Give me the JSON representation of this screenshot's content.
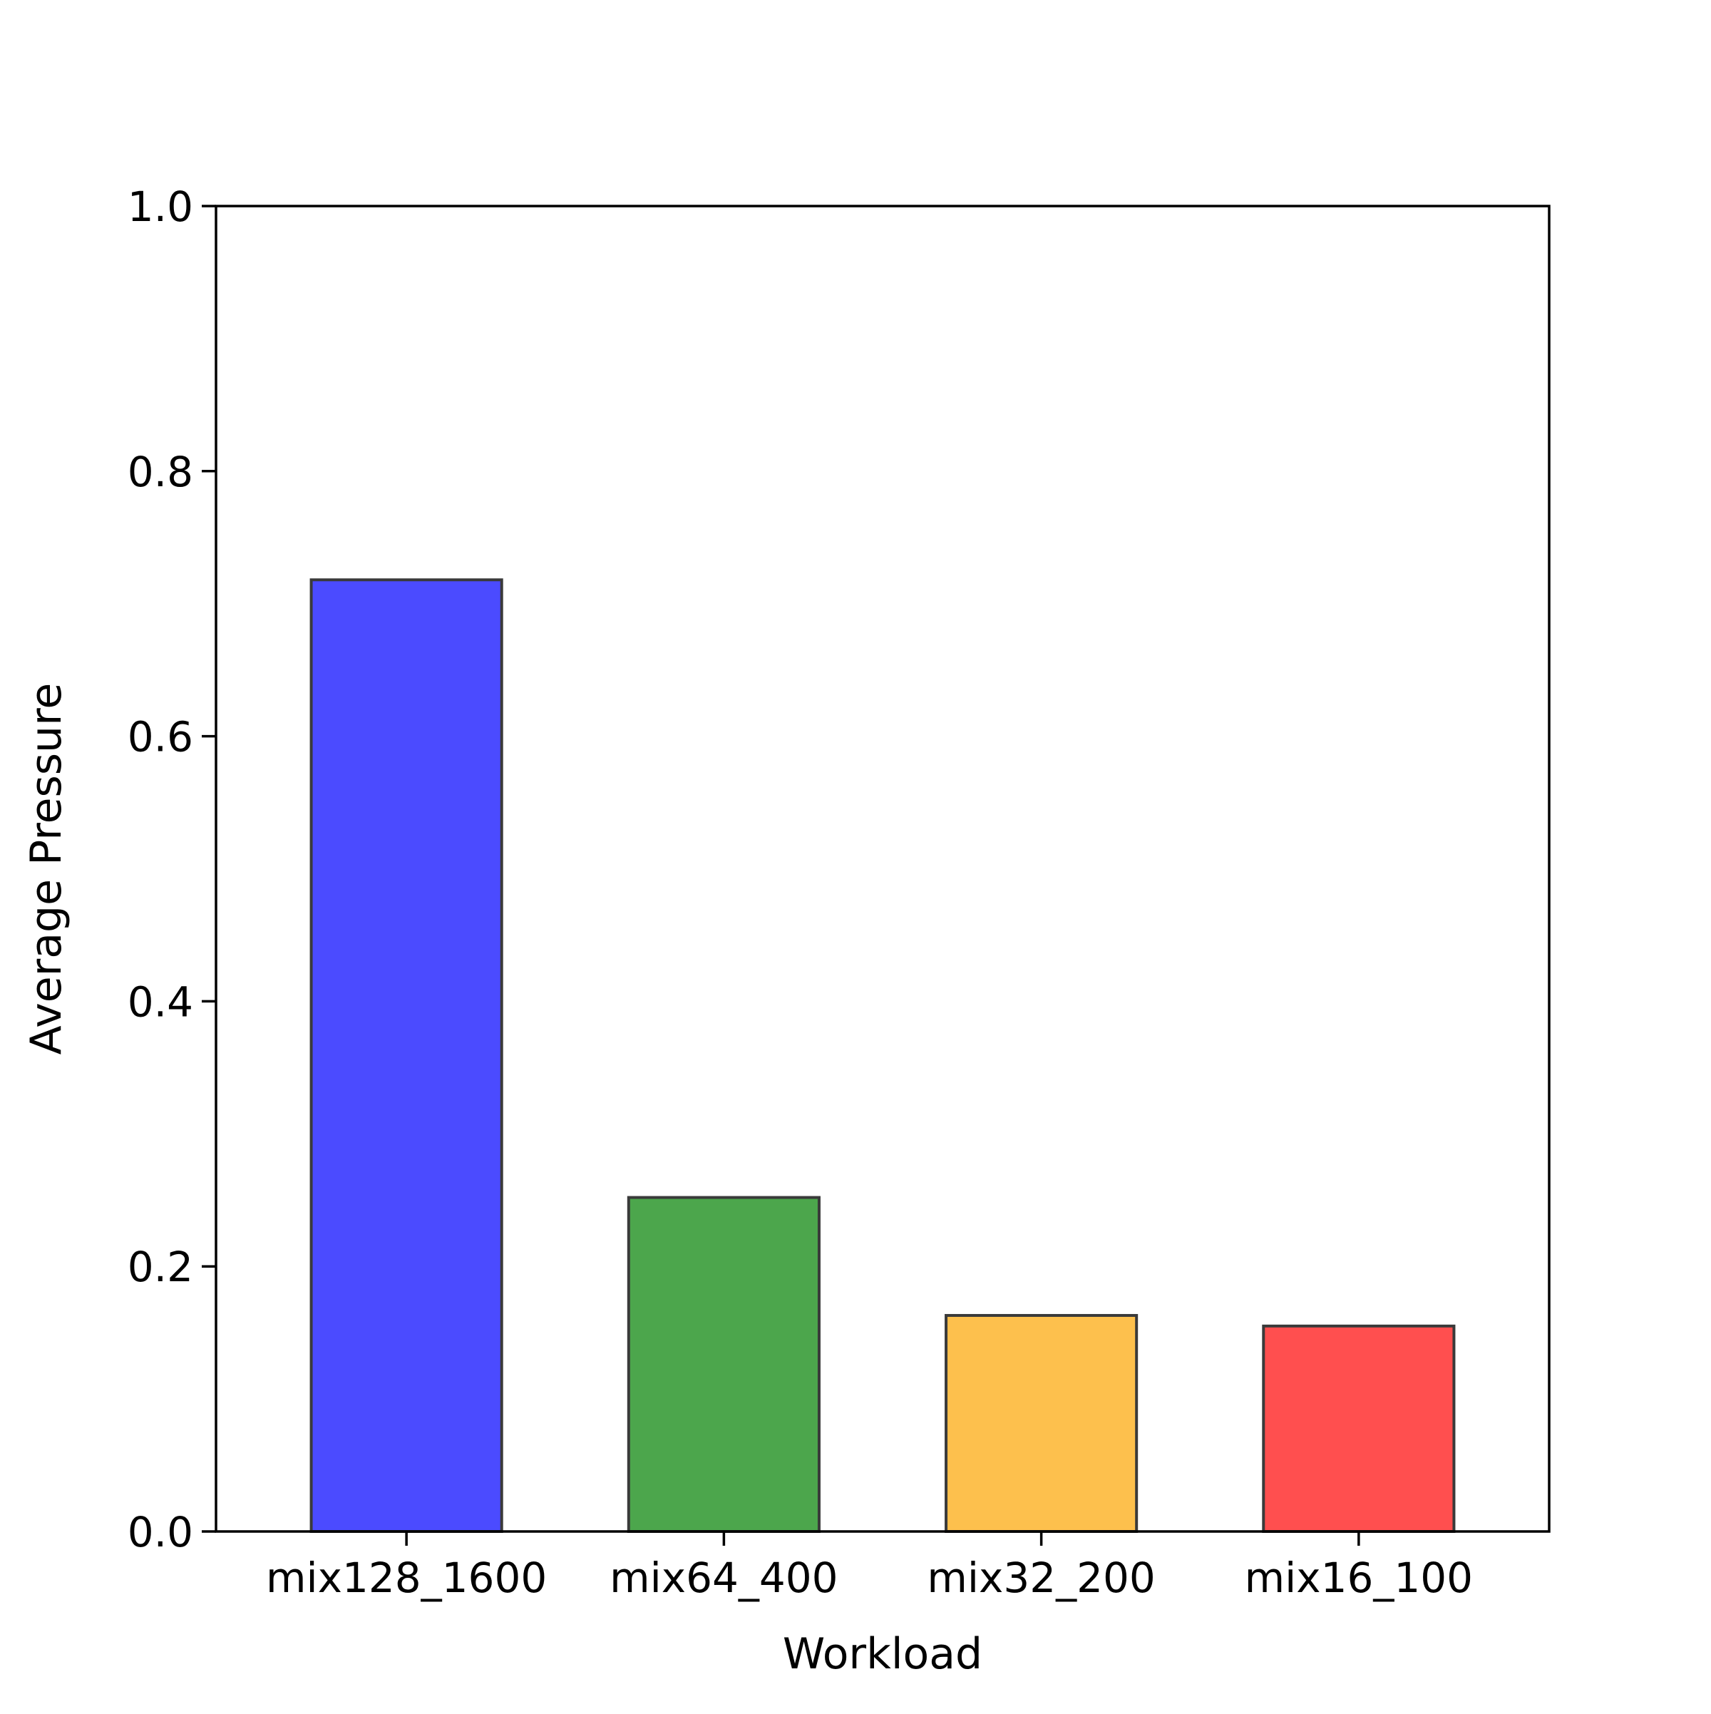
{
  "chart_data": {
    "type": "bar",
    "title": "",
    "xlabel": "Workload",
    "ylabel": "Average Pressure",
    "categories": [
      "mix128_1600",
      "mix64_400",
      "mix32_200",
      "mix16_100"
    ],
    "values": [
      0.718,
      0.252,
      0.163,
      0.155
    ],
    "colors": [
      "#4b4bff",
      "#4ca64c",
      "#fdc04d",
      "#ff4f4f"
    ],
    "bar_edge_color": "#3a3a3a",
    "ylim": [
      0,
      1.0
    ],
    "yticks": [
      "0.0",
      "0.2",
      "0.4",
      "0.6",
      "0.8",
      "1.0"
    ],
    "ytick_values": [
      0.0,
      0.2,
      0.4,
      0.6,
      0.8,
      1.0
    ],
    "grid": false,
    "legend": "none"
  }
}
